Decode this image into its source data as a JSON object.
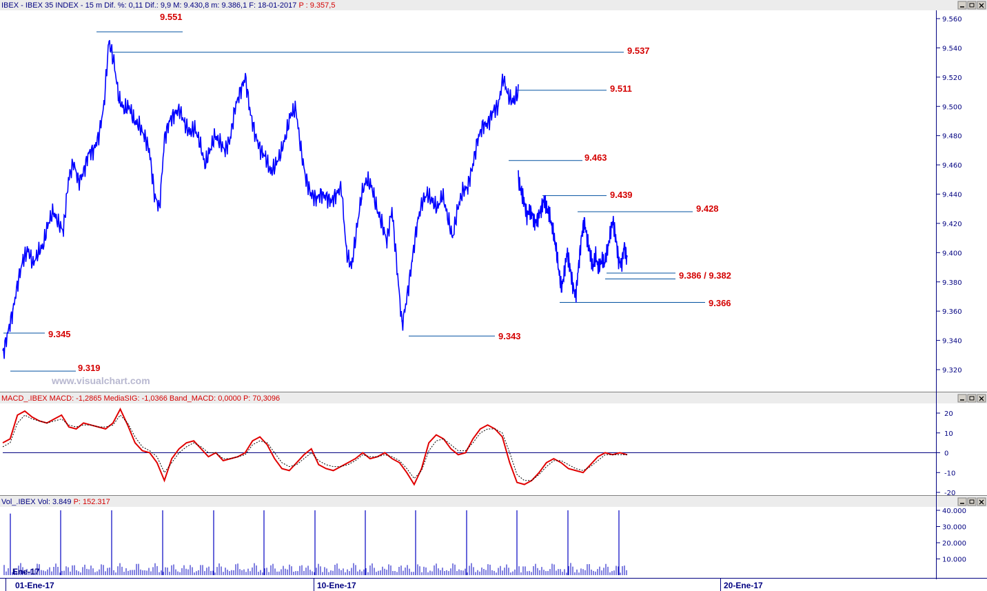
{
  "panels": {
    "price": {
      "header_left": "IBEX - IBEX 35 INDEX - 15 m  Dif. %: 0,11  Dif.: 9,9  M: 9.430,8  m: 9.386,1  F: 18-01-2017  ",
      "header_right": "P : 9.357,5",
      "watermark": "www.visualchart.com"
    },
    "macd": {
      "header_left": "MACD_.IBEX MACD: -1,2865  MediaSIG: -1,0366  Band_MACD: 0,0000  ",
      "header_right": "P: 70,3096"
    },
    "volume": {
      "header_left": "Vol_.IBEX Vol: 3.849  ",
      "header_right": "P: 152.317"
    }
  },
  "x_axis": {
    "labels": [
      "01-Ene-17",
      "10-Ene-17",
      "20-Ene-17"
    ],
    "inner_label": "Ene-17"
  },
  "colors": {
    "price_line": "#0000ff",
    "macd_line": "#e00000",
    "signal_line": "#000000",
    "level_lines": "#0050a0",
    "level_labels": "#d40000",
    "axis_text": "#000080",
    "volume_bars": "#0000c0"
  },
  "chart_data": [
    {
      "type": "line",
      "title": "",
      "y_ticks": [
        "9.560",
        "9.540",
        "9.520",
        "9.500",
        "9.480",
        "9.460",
        "9.440",
        "9.420",
        "9.400",
        "9.380",
        "9.360",
        "9.340",
        "9.320"
      ],
      "ylim": [
        9311,
        9566
      ],
      "series": [
        {
          "values": [
            9330,
            9345,
            9360,
            9380,
            9395,
            9402,
            9392,
            9400,
            9405,
            9420,
            9428,
            9420,
            9415,
            9450,
            9462,
            9448,
            9455,
            9468,
            9470,
            9480,
            9500,
            9545,
            9530,
            9505,
            9498,
            9500,
            9490,
            9487,
            9480,
            9470,
            9440,
            9430,
            9478,
            9490,
            9495,
            9498,
            9488,
            9482,
            9485,
            9475,
            9460,
            9470,
            9480,
            9475,
            9470,
            9478,
            9500,
            9510,
            9520,
            9495,
            9480,
            9470,
            9465,
            9455,
            9460,
            9468,
            9480,
            9495,
            9498,
            9470,
            9450,
            9440,
            9437,
            9440,
            9438,
            9435,
            9440,
            9445,
            9400,
            9390,
            9415,
            9440,
            9450,
            9445,
            9430,
            9420,
            9408,
            9430,
            9390,
            9350,
            9370,
            9395,
            9420,
            9435,
            9440,
            9435,
            9430,
            9440,
            9425,
            9410,
            9430,
            9442,
            9445,
            9460,
            9478,
            9487,
            9488,
            9497,
            9500,
            9520,
            9507,
            9503,
            9510
          ]
        },
        {
          "values": [
            9450,
            9442,
            9435,
            9425,
            9430,
            9425,
            9420,
            9425,
            9430,
            9436,
            9430,
            9425,
            9415,
            9405,
            9390,
            9375,
            9385,
            9400,
            9390,
            9378,
            9370,
            9390,
            9410,
            9422,
            9410,
            9400,
            9390,
            9398,
            9388,
            9395,
            9392,
            9400,
            9412,
            9422,
            9410,
            9395,
            9392,
            9405,
            9395
          ]
        }
      ],
      "levels": [
        {
          "value": 9551,
          "label": "9.551"
        },
        {
          "value": 9537,
          "label": "9.537"
        },
        {
          "value": 9511,
          "label": "9.511"
        },
        {
          "value": 9463,
          "label": "9.463"
        },
        {
          "value": 9439,
          "label": "9.439"
        },
        {
          "value": 9428,
          "label": "9.428"
        },
        {
          "value": 9386,
          "label": "9.386 / 9.382"
        },
        {
          "value": 9382,
          "label": ""
        },
        {
          "value": 9366,
          "label": "9.366"
        },
        {
          "value": 9345,
          "label": "9.345"
        },
        {
          "value": 9343,
          "label": "9.343"
        },
        {
          "value": 9319,
          "label": "9.319"
        }
      ]
    },
    {
      "type": "line",
      "title": "",
      "y_ticks": [
        "20",
        "10",
        "0",
        "-10",
        "-20"
      ],
      "ylim": [
        -20.5,
        23
      ],
      "zero_line": 0,
      "series": [
        {
          "values": [
            5,
            7,
            19,
            21,
            18,
            16,
            15,
            17,
            19,
            13,
            12,
            15,
            14,
            13,
            12,
            15,
            22,
            14,
            5,
            1,
            0,
            -5,
            -14,
            -3,
            2,
            5,
            6,
            2,
            -2,
            0,
            -4,
            -3,
            -2,
            0,
            6,
            8,
            4,
            -3,
            -8,
            -9,
            -5,
            -1,
            2,
            -6,
            -8,
            -9,
            -7,
            -5,
            -3,
            0,
            -3,
            -2,
            0,
            -3,
            -5,
            -10,
            -16,
            -8,
            5,
            9,
            7,
            2,
            -1,
            0,
            7,
            12,
            14,
            12,
            8,
            -5,
            -15,
            -16,
            -14,
            -10,
            -5,
            -3,
            -5,
            -8,
            -9,
            -10,
            -6,
            -2,
            0,
            -1,
            0,
            -1
          ]
        },
        {
          "values": [
            3,
            5,
            15,
            19,
            17,
            16,
            15,
            16,
            17,
            14,
            13,
            14,
            14,
            13,
            13,
            14,
            19,
            15,
            8,
            3,
            1,
            -2,
            -10,
            -5,
            0,
            3,
            5,
            3,
            0,
            0,
            -3,
            -3,
            -2,
            -1,
            4,
            6,
            5,
            0,
            -5,
            -7,
            -6,
            -3,
            0,
            -4,
            -6,
            -7,
            -7,
            -6,
            -4,
            -1,
            -2,
            -2,
            -1,
            -2,
            -4,
            -8,
            -13,
            -9,
            1,
            6,
            7,
            4,
            1,
            1,
            5,
            10,
            12,
            12,
            10,
            0,
            -11,
            -14,
            -14,
            -11,
            -7,
            -4,
            -4,
            -6,
            -8,
            -9,
            -7,
            -4,
            -1,
            -1,
            -1,
            -1
          ]
        }
      ]
    },
    {
      "type": "bar",
      "title": "",
      "y_ticks": [
        "40.000",
        "30.000",
        "20.000",
        "10.000"
      ],
      "ylim": [
        0,
        42000
      ],
      "spikes": [
        {
          "day": 0,
          "value": 38000
        },
        {
          "day": 1,
          "value": 40000
        },
        {
          "day": 2,
          "value": 40000
        },
        {
          "day": 3,
          "value": 40000
        },
        {
          "day": 4,
          "value": 40000
        },
        {
          "day": 5,
          "value": 40000
        },
        {
          "day": 6,
          "value": 40000
        },
        {
          "day": 7,
          "value": 40000
        },
        {
          "day": 8,
          "value": 40000
        },
        {
          "day": 9,
          "value": 40000
        },
        {
          "day": 10,
          "value": 40000
        },
        {
          "day": 11,
          "value": 40000
        },
        {
          "day": 12,
          "value": 40000
        }
      ]
    }
  ]
}
